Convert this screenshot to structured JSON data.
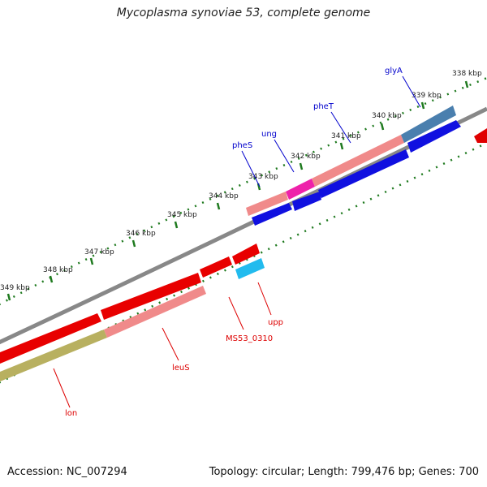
{
  "title": "Mycoplasma synoviae 53, complete genome",
  "footer": {
    "accession": "Accession: NC_007294",
    "stats": "Topology: circular; Length: 799,476 bp; Genes: 700"
  },
  "colors": {
    "backbone": "#808080",
    "ticks": "#1f7a1f",
    "forward_label": "#0000cc",
    "reverse_label": "#dd0000"
  },
  "kbp_labels": [
    "338 kbp",
    "339 kbp",
    "340 kbp",
    "341 kbp",
    "342 kbp",
    "343 kbp",
    "344 kbp",
    "345 kbp",
    "346 kbp",
    "347 kbp",
    "348 kbp",
    "349 kbp"
  ],
  "genes": [
    {
      "name": "glyA",
      "strand": "forward"
    },
    {
      "name": "pheT",
      "strand": "forward"
    },
    {
      "name": "ung",
      "strand": "forward"
    },
    {
      "name": "pheS",
      "strand": "forward"
    },
    {
      "name": "upp",
      "strand": "reverse"
    },
    {
      "name": "MS53_0310",
      "strand": "reverse"
    },
    {
      "name": "leuS",
      "strand": "reverse"
    },
    {
      "name": "lon",
      "strand": "reverse"
    }
  ]
}
